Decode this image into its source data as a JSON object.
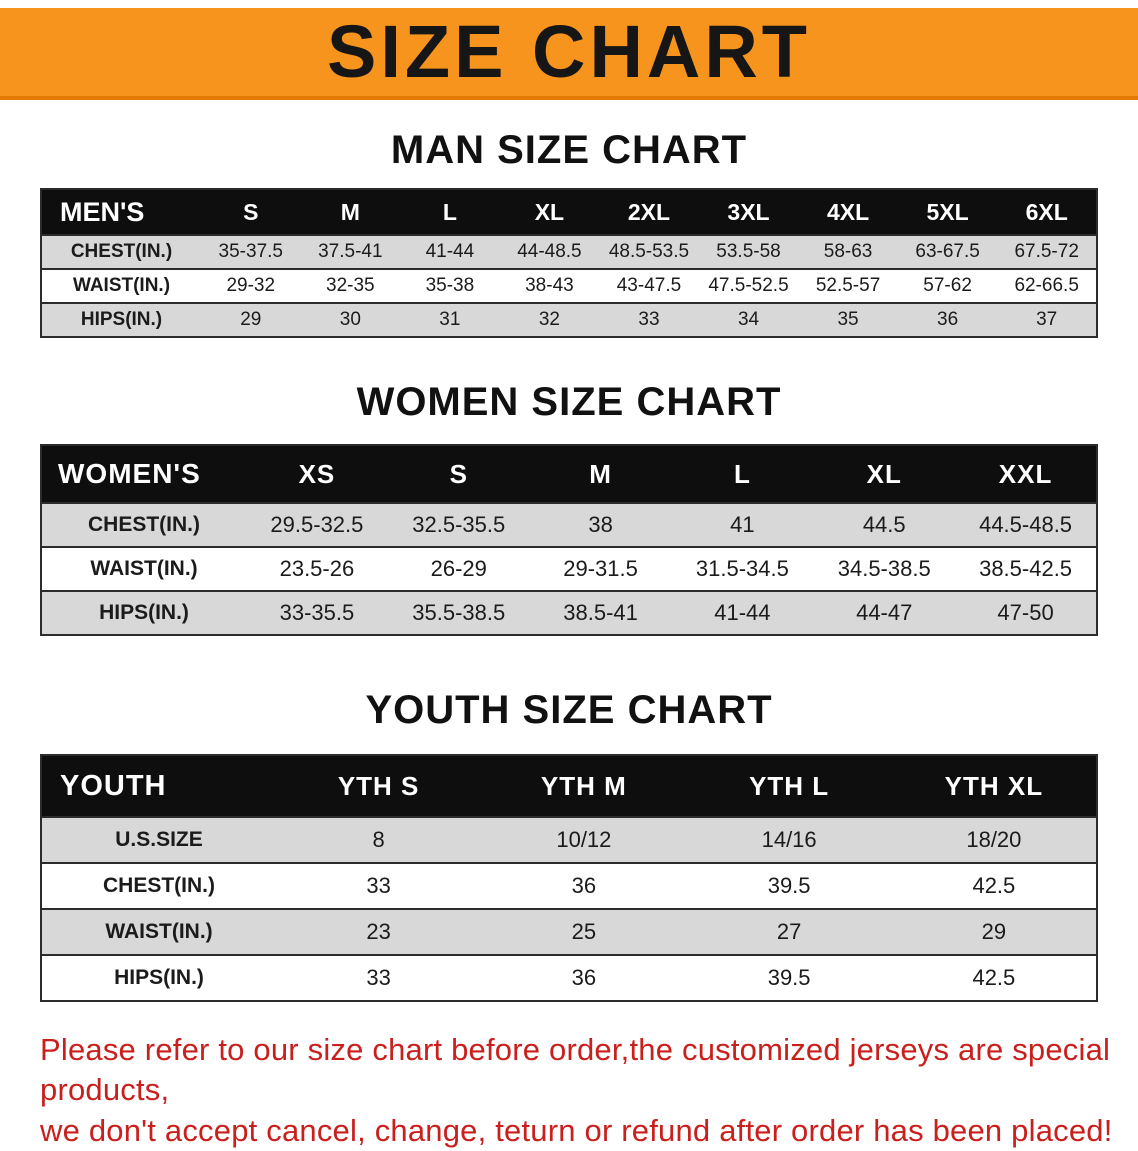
{
  "banner": {
    "title": "SIZE CHART"
  },
  "colors": {
    "banner_bg": "#f7941d",
    "table_header_bg": "#0e0e0e",
    "row_gray": "#d8d8d8",
    "disclaimer_red": "#c9201d"
  },
  "chart_data": [
    {
      "type": "table",
      "title": "MAN SIZE CHART",
      "header": [
        "MEN'S",
        "S",
        "M",
        "L",
        "XL",
        "2XL",
        "3XL",
        "4XL",
        "5XL",
        "6XL"
      ],
      "rows": [
        [
          "CHEST(IN.)",
          "35-37.5",
          "37.5-41",
          "41-44",
          "44-48.5",
          "48.5-53.5",
          "53.5-58",
          "58-63",
          "63-67.5",
          "67.5-72"
        ],
        [
          "WAIST(IN.)",
          "29-32",
          "32-35",
          "35-38",
          "38-43",
          "43-47.5",
          "47.5-52.5",
          "52.5-57",
          "57-62",
          "62-66.5"
        ],
        [
          "HIPS(IN.)",
          "29",
          "30",
          "31",
          "32",
          "33",
          "34",
          "35",
          "36",
          "37"
        ]
      ]
    },
    {
      "type": "table",
      "title": "WOMEN SIZE CHART",
      "header": [
        "WOMEN'S",
        "XS",
        "S",
        "M",
        "L",
        "XL",
        "XXL"
      ],
      "rows": [
        [
          "CHEST(IN.)",
          "29.5-32.5",
          "32.5-35.5",
          "38",
          "41",
          "44.5",
          "44.5-48.5"
        ],
        [
          "WAIST(IN.)",
          "23.5-26",
          "26-29",
          "29-31.5",
          "31.5-34.5",
          "34.5-38.5",
          "38.5-42.5"
        ],
        [
          "HIPS(IN.)",
          "33-35.5",
          "35.5-38.5",
          "38.5-41",
          "41-44",
          "44-47",
          "47-50"
        ]
      ]
    },
    {
      "type": "table",
      "title": "YOUTH SIZE CHART",
      "header": [
        "YOUTH",
        "YTH S",
        "YTH M",
        "YTH L",
        "YTH XL"
      ],
      "rows": [
        [
          "U.S.SIZE",
          "8",
          "10/12",
          "14/16",
          "18/20"
        ],
        [
          "CHEST(IN.)",
          "33",
          "36",
          "39.5",
          "42.5"
        ],
        [
          "WAIST(IN.)",
          "23",
          "25",
          "27",
          "29"
        ],
        [
          "HIPS(IN.)",
          "33",
          "36",
          "39.5",
          "42.5"
        ]
      ]
    }
  ],
  "disclaimer": {
    "lines": [
      "Please refer to our size chart before order,the customized jerseys are special products,",
      "we don't accept cancel, change, teturn or refund after order has been placed!"
    ]
  }
}
